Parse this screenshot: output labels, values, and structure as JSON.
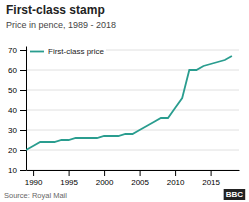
{
  "chart_data": {
    "type": "line",
    "title": "First-class stamp",
    "subtitle": "Price in pence, 1989 - 2018",
    "annotations": [
      "Source: Royal Mail",
      "BBC"
    ],
    "x": [
      1989,
      1990,
      1991,
      1992,
      1993,
      1994,
      1995,
      1996,
      1997,
      1998,
      1999,
      2000,
      2001,
      2002,
      2003,
      2004,
      2005,
      2006,
      2007,
      2008,
      2009,
      2010,
      2011,
      2012,
      2013,
      2014,
      2015,
      2016,
      2017,
      2018
    ],
    "series": [
      {
        "name": "First-class price",
        "color": "#2a9d8f",
        "values": [
          20,
          22,
          24,
          24,
          24,
          25,
          25,
          26,
          26,
          26,
          26,
          27,
          27,
          27,
          28,
          28,
          30,
          32,
          34,
          36,
          36,
          41,
          46,
          60,
          60,
          62,
          63,
          64,
          65,
          67
        ]
      }
    ],
    "xlim": [
      1989,
      2019
    ],
    "xticks": [
      1990,
      1995,
      2000,
      2005,
      2010,
      2015
    ],
    "ylim": [
      10,
      72
    ],
    "yticks": [
      10,
      20,
      30,
      40,
      50,
      60,
      70
    ],
    "grid": true,
    "legend": "upper left"
  }
}
